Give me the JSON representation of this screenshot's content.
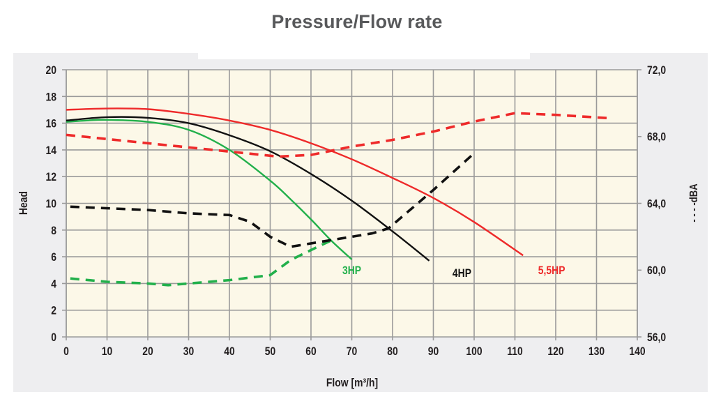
{
  "page_title": "Pressure/Flow rate",
  "chart_data": {
    "type": "line",
    "title": "Pressure/Flow rate",
    "xlabel": "Flow [m³/h]",
    "ylabel": "Head",
    "y2label": "- - - -dBA",
    "xlim": [
      0,
      140
    ],
    "ylim": [
      0,
      20
    ],
    "y2lim": [
      56,
      72
    ],
    "grid": true,
    "x_ticks": [
      "0",
      "10",
      "20",
      "30",
      "40",
      "50",
      "60",
      "70",
      "80",
      "90",
      "100",
      "110",
      "120",
      "130",
      "140"
    ],
    "y_ticks": [
      "0",
      "2",
      "4",
      "6",
      "8",
      "10",
      "12",
      "14",
      "16",
      "18",
      "20"
    ],
    "y2_ticks": [
      "56,0",
      "60,0",
      "64,0",
      "68,0",
      "72,0"
    ],
    "colors": {
      "3HP": "#22b04b",
      "4HP": "#111111",
      "5,5HP": "#ee2a2a",
      "plot_bg": "#fcf8e8",
      "grid": "#9a9a9a"
    },
    "series": [
      {
        "name": "3HP",
        "kind": "head",
        "axis": "left",
        "color": "#22b04b",
        "x": [
          0,
          5,
          10,
          20,
          30,
          40,
          50,
          55,
          60,
          65,
          70
        ],
        "y": [
          16.1,
          16.2,
          16.25,
          16.1,
          15.5,
          14.0,
          11.7,
          10.3,
          8.8,
          7.2,
          5.8
        ]
      },
      {
        "name": "4HP",
        "kind": "head",
        "axis": "left",
        "color": "#111111",
        "x": [
          0,
          10,
          20,
          30,
          40,
          50,
          60,
          70,
          80,
          89
        ],
        "y": [
          16.2,
          16.45,
          16.4,
          16.0,
          15.1,
          13.9,
          12.2,
          10.2,
          7.9,
          5.7
        ]
      },
      {
        "name": "5,5HP",
        "kind": "head",
        "axis": "left",
        "color": "#ee2a2a",
        "x": [
          0,
          10,
          20,
          30,
          40,
          50,
          60,
          70,
          80,
          90,
          100,
          112
        ],
        "y": [
          17.0,
          17.1,
          17.05,
          16.7,
          16.2,
          15.5,
          14.5,
          13.3,
          11.9,
          10.4,
          8.6,
          6.1
        ]
      },
      {
        "name": "3HP dBA",
        "kind": "dBA",
        "axis": "right",
        "color": "#22b04b",
        "x": [
          1,
          10,
          20,
          25,
          30,
          40,
          50,
          55,
          60,
          66
        ],
        "y": [
          59.5,
          59.3,
          59.2,
          59.1,
          59.2,
          59.4,
          59.7,
          60.6,
          61.2,
          61.9
        ]
      },
      {
        "name": "4HP dBA",
        "kind": "dBA",
        "axis": "right",
        "color": "#111111",
        "x": [
          1,
          20,
          30,
          40,
          45,
          50,
          55,
          65,
          75,
          79,
          90,
          100
        ],
        "y": [
          63.8,
          63.6,
          63.4,
          63.3,
          62.9,
          62.0,
          61.4,
          61.8,
          62.2,
          62.5,
          64.8,
          67.0
        ]
      },
      {
        "name": "5,5HP dBA",
        "kind": "dBA",
        "axis": "right",
        "color": "#ee2a2a",
        "x": [
          0,
          20,
          40,
          52,
          60,
          70,
          80,
          90,
          100,
          110,
          120,
          133
        ],
        "y": [
          68.1,
          67.6,
          67.1,
          66.8,
          66.9,
          67.4,
          67.8,
          68.3,
          68.9,
          69.4,
          69.3,
          69.1
        ]
      }
    ],
    "annotations": [
      {
        "text": "3HP",
        "x": 70,
        "y": 4.7,
        "color": "#22b04b"
      },
      {
        "text": "4HP",
        "x": 97,
        "y": 4.5,
        "color": "#111111"
      },
      {
        "text": "5,5HP",
        "x": 119,
        "y": 4.7,
        "color": "#ee2a2a"
      }
    ]
  }
}
